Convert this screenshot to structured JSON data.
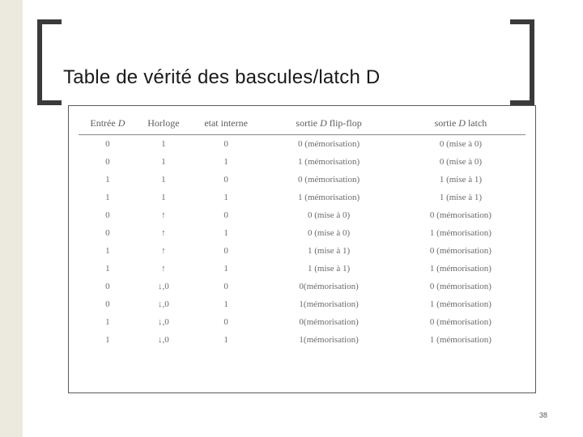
{
  "title": "Table de vérité des bascules/latch D",
  "page_number": "38",
  "accent_background": "#eceadf",
  "bracket_color": "#3a3a3a",
  "table": {
    "columns": [
      {
        "label_pre": "Entrée ",
        "label_it": "D"
      },
      {
        "label_pre": "Horloge",
        "label_it": ""
      },
      {
        "label_pre": "etat interne",
        "label_it": ""
      },
      {
        "label_pre": "sortie ",
        "label_it": "D",
        "label_post": " flip-flop"
      },
      {
        "label_pre": "sortie ",
        "label_it": "D",
        "label_post": " latch"
      }
    ],
    "rows": [
      {
        "d": "0",
        "h": "1",
        "e": "0",
        "ff": "0 (mémorisation)",
        "la": "0 (mise à 0)"
      },
      {
        "d": "0",
        "h": "1",
        "e": "1",
        "ff": "1 (mémorisation)",
        "la": "0 (mise à 0)"
      },
      {
        "d": "1",
        "h": "1",
        "e": "0",
        "ff": "0 (mémorisation)",
        "la": "1 (mise à 1)"
      },
      {
        "d": "1",
        "h": "1",
        "e": "1",
        "ff": "1 (mémorisation)",
        "la": "1 (mise à 1)"
      },
      {
        "d": "0",
        "h": "↑",
        "e": "0",
        "ff": "0 (mise à 0)",
        "la": "0 (mémorisation)"
      },
      {
        "d": "0",
        "h": "↑",
        "e": "1",
        "ff": "0 (mise à 0)",
        "la": "1 (mémorisation)"
      },
      {
        "d": "1",
        "h": "↑",
        "e": "0",
        "ff": "1 (mise à 1)",
        "la": "0 (mémorisation)"
      },
      {
        "d": "1",
        "h": "↑",
        "e": "1",
        "ff": "1 (mise à 1)",
        "la": "1 (mémorisation)"
      },
      {
        "d": "0",
        "h": "↓,0",
        "e": "0",
        "ff": "0(mémorisation)",
        "la": "0 (mémorisation)"
      },
      {
        "d": "0",
        "h": "↓,0",
        "e": "1",
        "ff": "1(mémorisation)",
        "la": "1 (mémorisation)"
      },
      {
        "d": "1",
        "h": "↓,0",
        "e": "0",
        "ff": "0(mémorisation)",
        "la": "0 (mémorisation)"
      },
      {
        "d": "1",
        "h": "↓,0",
        "e": "1",
        "ff": "1(mémorisation)",
        "la": "1 (mémorisation)"
      }
    ]
  }
}
